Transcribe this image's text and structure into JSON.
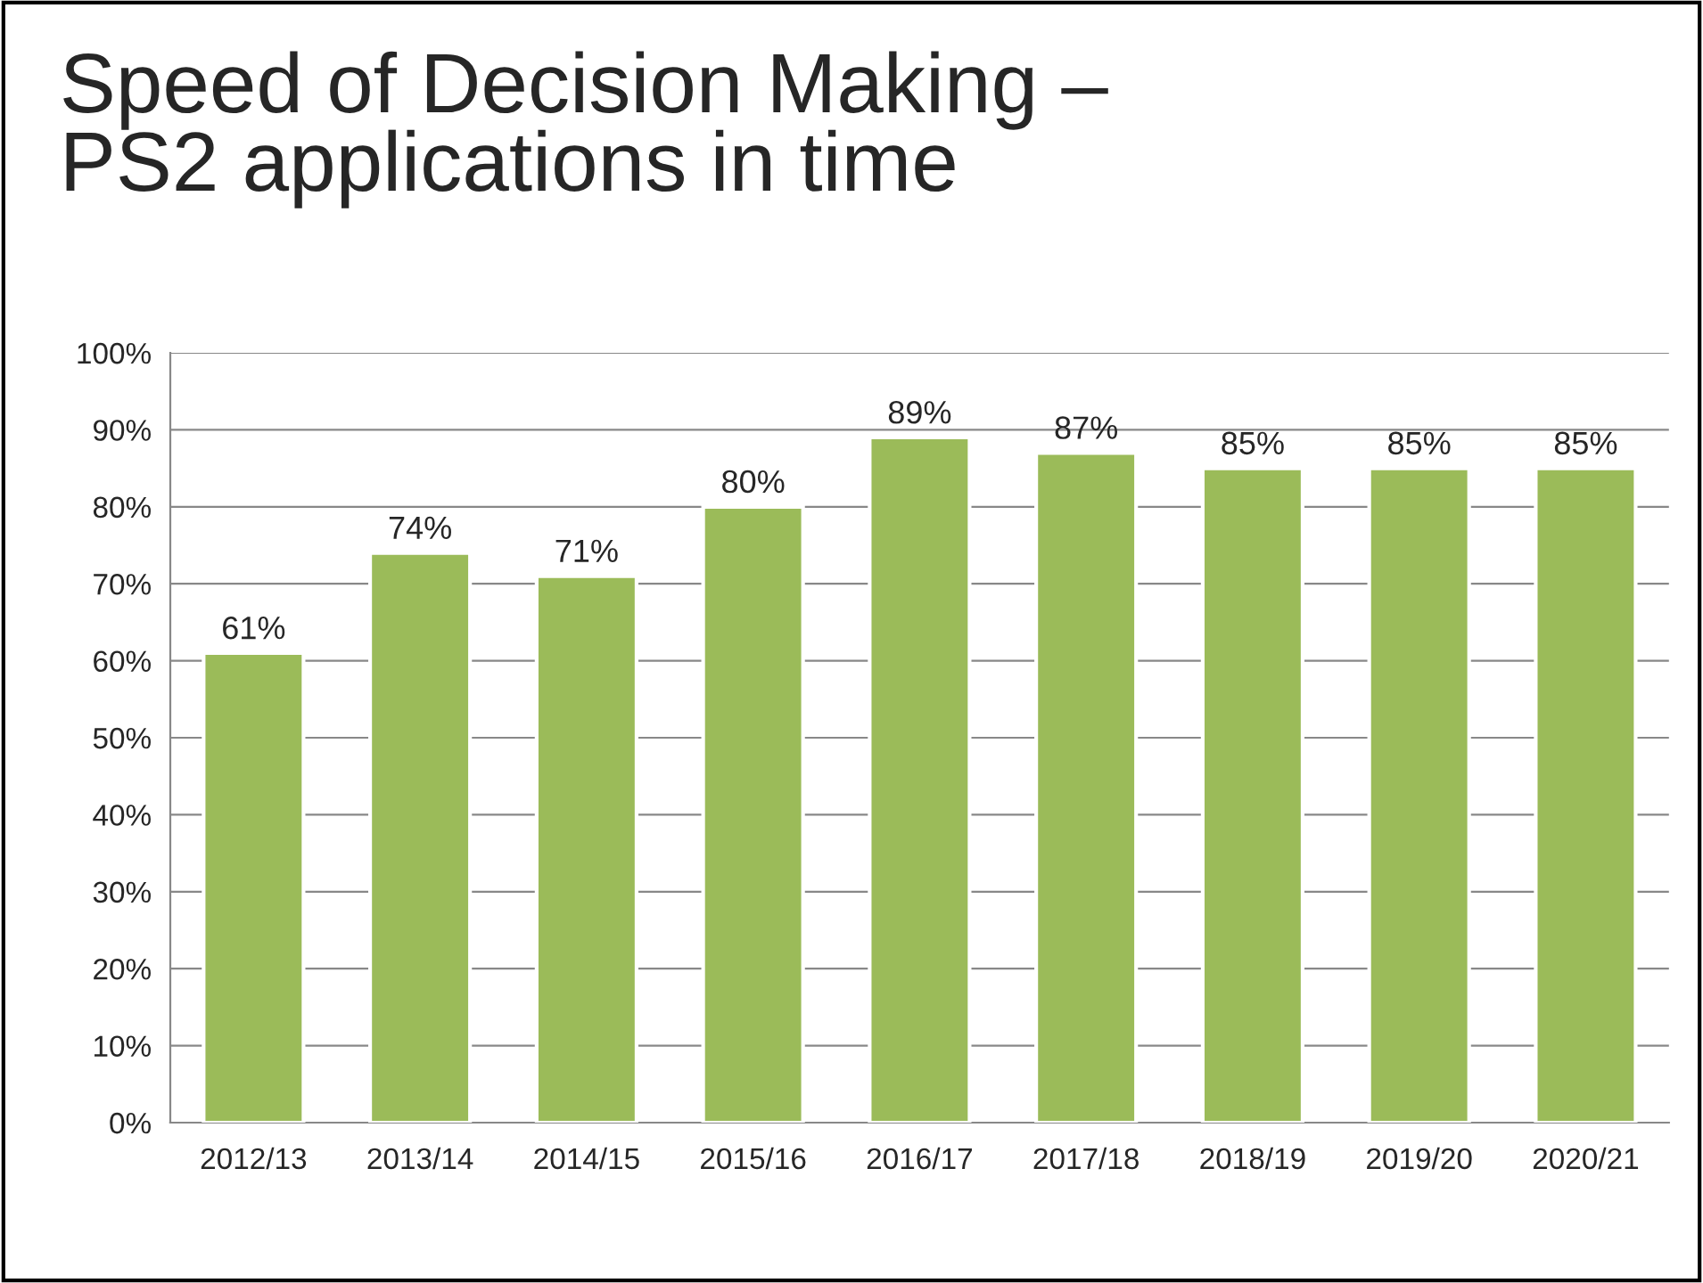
{
  "chart_data": {
    "type": "bar",
    "title": "Speed of Decision Making –\nPS2 applications in time",
    "categories": [
      "2012/13",
      "2013/14",
      "2014/15",
      "2015/16",
      "2016/17",
      "2017/18",
      "2018/19",
      "2019/20",
      "2020/21"
    ],
    "values": [
      61,
      74,
      71,
      80,
      89,
      87,
      85,
      85,
      85
    ],
    "value_labels": [
      "61%",
      "74%",
      "71%",
      "80%",
      "89%",
      "87%",
      "85%",
      "85%",
      "85%"
    ],
    "color": "#9bbb59",
    "ylim": [
      0,
      100
    ],
    "yticks": [
      {
        "value": 0,
        "label": "0%"
      },
      {
        "value": 10,
        "label": "10%"
      },
      {
        "value": 20,
        "label": "20%"
      },
      {
        "value": 30,
        "label": "30%"
      },
      {
        "value": 40,
        "label": "40%"
      },
      {
        "value": 50,
        "label": "50%"
      },
      {
        "value": 60,
        "label": "60%"
      },
      {
        "value": 70,
        "label": "70%"
      },
      {
        "value": 80,
        "label": "80%"
      },
      {
        "value": 90,
        "label": "90%"
      },
      {
        "value": 100,
        "label": "100%"
      }
    ],
    "grid": "y",
    "legend": false
  }
}
